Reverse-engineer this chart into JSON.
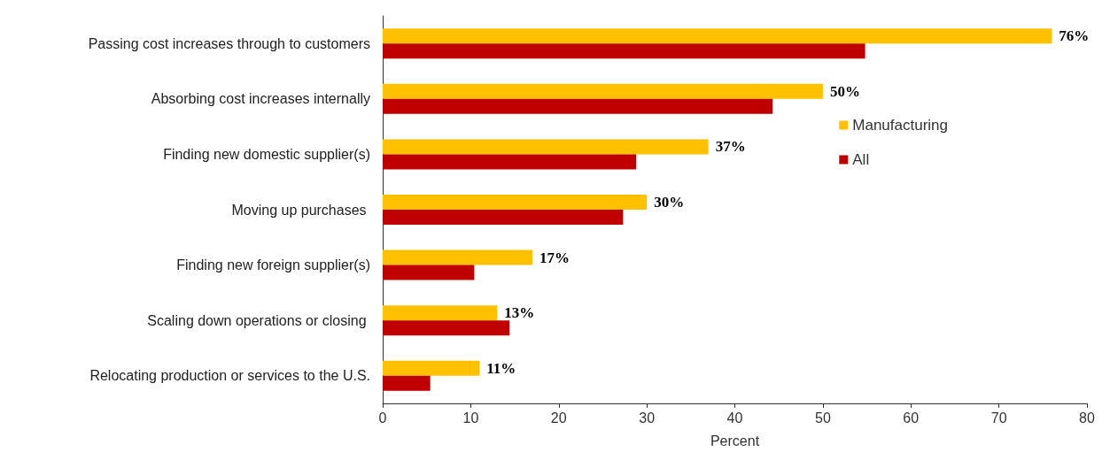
{
  "chart_data": {
    "type": "bar",
    "orientation": "horizontal",
    "xlabel": "Percent",
    "categories": [
      "Passing cost increases through to customers",
      "Absorbing cost increases internally",
      "Finding new domestic supplier(s)",
      "Moving up purchases ",
      "Finding new foreign supplier(s)",
      "Scaling down operations or closing ",
      "Relocating production or services to the U.S."
    ],
    "series": [
      {
        "name": "Manufacturing",
        "color": "#ffc000",
        "values": [
          76,
          50,
          37,
          30,
          17,
          13,
          11
        ],
        "value_labels": [
          "76%",
          "50%",
          "37%",
          "30%",
          "17%",
          "13%",
          "11%"
        ]
      },
      {
        "name": "All",
        "color": "#c00000",
        "values": [
          54.8,
          44.3,
          28.8,
          27.3,
          10.4,
          14.4,
          5.4
        ]
      }
    ],
    "xlim": [
      0,
      80
    ],
    "xticks": [
      0,
      10,
      20,
      30,
      40,
      50,
      60,
      70,
      80
    ],
    "grid": false,
    "legend": "right"
  }
}
